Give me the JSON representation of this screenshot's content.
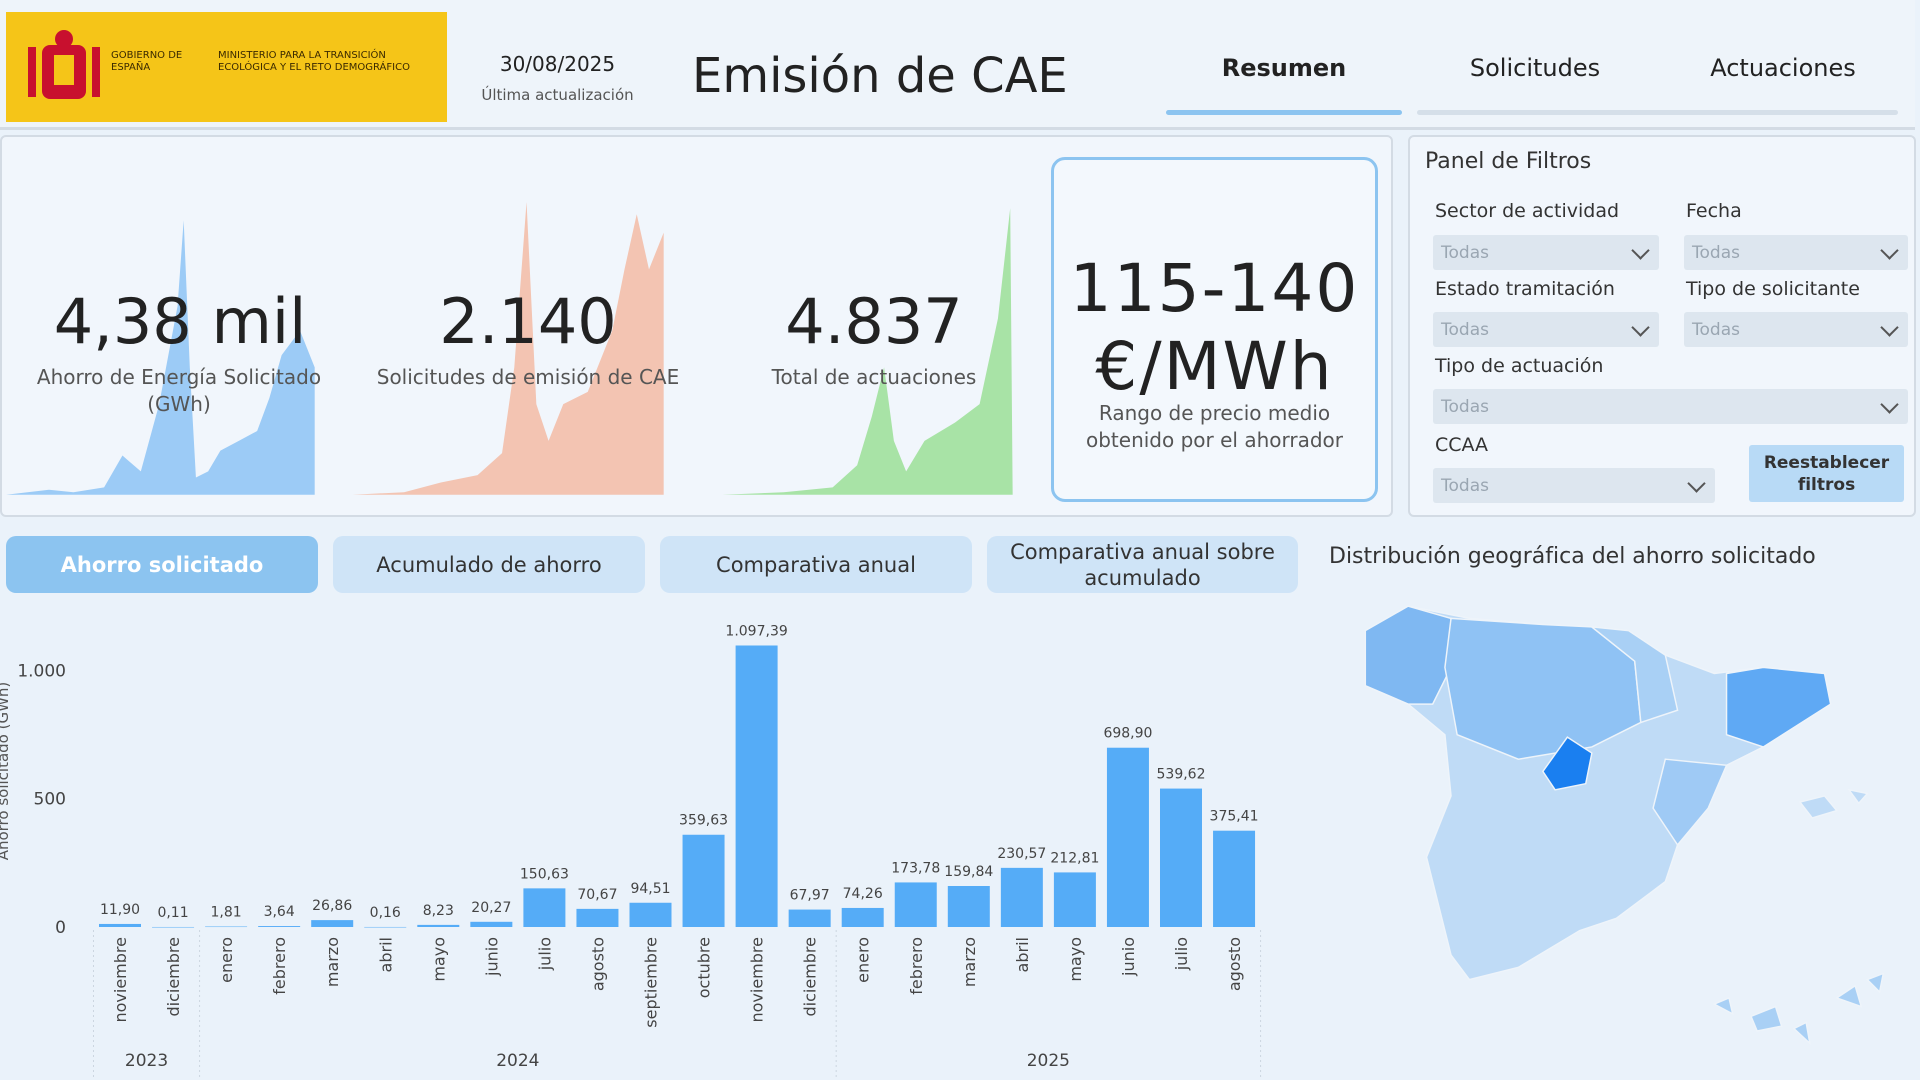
{
  "header": {
    "logo_left": "GOBIERNO DE ESPAÑA",
    "logo_right": "MINISTERIO PARA LA TRANSICIÓN ECOLÓGICA Y EL RETO DEMOGRÁFICO",
    "date": "30/08/2025",
    "date_caption": "Última actualización",
    "title": "Emisión de CAE",
    "tabs": [
      "Resumen",
      "Solicitudes",
      "Actuaciones"
    ]
  },
  "kpis": [
    {
      "value": "4,38 mil",
      "label": "Ahorro de Energía Solicitado (GWh)"
    },
    {
      "value": "2.140",
      "label": "Solicitudes de emisión de CAE"
    },
    {
      "value": "4.837",
      "label": "Total de actuaciones"
    },
    {
      "value": "115-140 €/MWh",
      "label": "Rango de precio medio obtenido por el ahorrador"
    }
  ],
  "filters": {
    "title": "Panel de Filtros",
    "fields": [
      {
        "label": "Sector de actividad",
        "value": "Todas"
      },
      {
        "label": "Fecha",
        "value": "Todas"
      },
      {
        "label": "Estado tramitación",
        "value": "Todas"
      },
      {
        "label": "Tipo de solicitante",
        "value": "Todas"
      },
      {
        "label": "Tipo de actuación",
        "value": "Todas"
      },
      {
        "label": "CCAA",
        "value": "Todas"
      }
    ],
    "reset": "Reestablecer filtros"
  },
  "subtabs": [
    "Ahorro solicitado",
    "Acumulado de ahorro",
    "Comparativa anual",
    "Comparativa anual sobre acumulado"
  ],
  "map_title": "Distribución geográfica del ahorro solicitado",
  "chart_data": {
    "type": "bar",
    "ylabel": "Ahorro solicitado (GWh)",
    "color": "#55acf7",
    "ylim": [
      0,
      1150
    ],
    "yticks": [
      0,
      500,
      {
        "value": 1000,
        "label": "1.000"
      }
    ],
    "grid": false,
    "groups": [
      {
        "label": "2023",
        "categories": [
          "noviembre",
          "diciembre"
        ],
        "values": [
          11.9,
          0.11
        ],
        "value_labels": [
          "11,90",
          "0,11"
        ]
      },
      {
        "label": "2024",
        "categories": [
          "enero",
          "febrero",
          "marzo",
          "abril",
          "mayo",
          "junio",
          "julio",
          "agosto",
          "septiembre",
          "octubre",
          "noviembre",
          "diciembre"
        ],
        "values": [
          1.81,
          3.64,
          26.86,
          0.16,
          8.23,
          20.27,
          150.63,
          70.67,
          94.51,
          359.63,
          1097.39,
          67.97
        ],
        "value_labels": [
          "1,81",
          "3,64",
          "26,86",
          "0,16",
          "8,23",
          "20,27",
          "150,63",
          "70,67",
          "94,51",
          "359,63",
          "1.097,39",
          "67,97"
        ]
      },
      {
        "label": "2025",
        "categories": [
          "enero",
          "febrero",
          "marzo",
          "abril",
          "mayo",
          "junio",
          "julio",
          "agosto"
        ],
        "values": [
          74.26,
          173.78,
          159.84,
          230.57,
          212.81,
          698.9,
          539.62,
          375.41
        ],
        "value_labels": [
          "74,26",
          "173,78",
          "159,84",
          "230,57",
          "212,81",
          "698,90",
          "539,62",
          "375,41"
        ]
      }
    ]
  }
}
